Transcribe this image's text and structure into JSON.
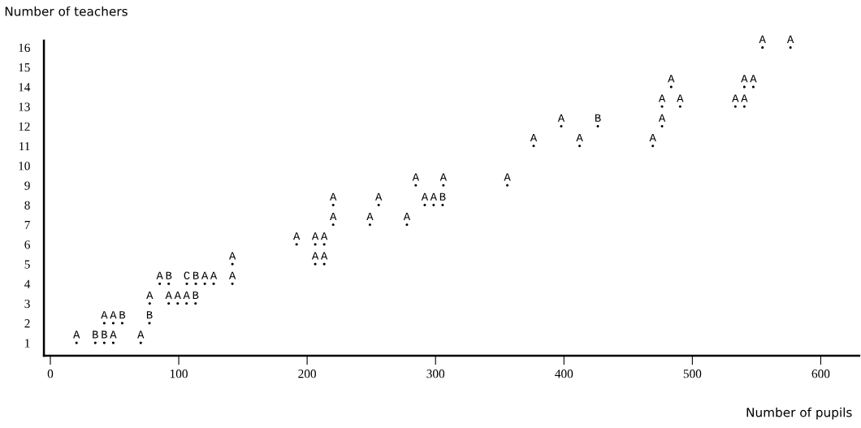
{
  "chart_data": {
    "type": "scatter",
    "xlabel": "Number of pupils",
    "ylabel": "Number of teachers",
    "xlim": [
      -5,
      630
    ],
    "xticks": [
      0,
      100,
      200,
      300,
      400,
      500,
      600
    ],
    "ylim": [
      0.35,
      16.35
    ],
    "yticks": [
      1,
      2,
      3,
      4,
      5,
      6,
      7,
      8,
      9,
      10,
      11,
      12,
      13,
      14,
      15,
      16
    ],
    "grid": false,
    "marker": "circle",
    "series": [
      {
        "color": "#000000",
        "x": [
          20.4,
          35,
          42,
          49,
          70.4,
          42,
          49,
          56,
          77.2,
          77.4,
          92.2,
          99.2,
          106.1,
          113.1,
          85.2,
          92.2,
          106.3,
          113.3,
          120.3,
          127.2,
          141.8,
          141.8,
          206.3,
          213.3,
          191.8,
          206.3,
          213.3,
          220.3,
          248.9,
          277.7,
          220.3,
          255.7,
          291.6,
          298.5,
          305.5,
          284.6,
          306.1,
          355.9,
          376.4,
          412.2,
          469.2,
          397.9,
          426.4,
          476.4,
          476.4,
          490.5,
          533.5,
          540.5,
          483.5,
          540.5,
          547.5,
          554.6,
          576.4
        ],
        "values": [
          1,
          1,
          1,
          1,
          1,
          2,
          2,
          2,
          2,
          3,
          3,
          3,
          3,
          3,
          4,
          4,
          4,
          4,
          4,
          4,
          4,
          5,
          5,
          5,
          6,
          6,
          6,
          7,
          7,
          7,
          8,
          8,
          8,
          8,
          8,
          9,
          9,
          9,
          11,
          11,
          11,
          12,
          12,
          12,
          13,
          13,
          13,
          13,
          14,
          14,
          14,
          16,
          16
        ],
        "value_labels": [
          "A",
          "B",
          "B",
          "A",
          "A",
          "A",
          "A",
          "B",
          "B",
          "A",
          "A",
          "A",
          "A",
          "B",
          "A",
          "B",
          "C",
          "B",
          "A",
          "A",
          "A",
          "A",
          "A",
          "A",
          "A",
          "A",
          "A",
          "A",
          "A",
          "A",
          "A",
          "A",
          "A",
          "A",
          "B",
          "A",
          "A",
          "A",
          "A",
          "A",
          "A",
          "A",
          "B",
          "A",
          "A",
          "A",
          "A",
          "A",
          "A",
          "A",
          "A",
          "A",
          "A"
        ]
      }
    ]
  }
}
